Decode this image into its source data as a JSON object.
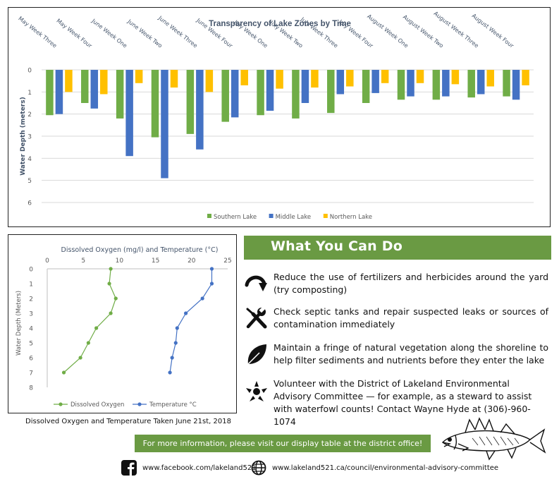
{
  "chart_data": [
    {
      "type": "bar",
      "title": "Transparency of Lake Zones by Time",
      "ylabel": "Water Depth (meters)",
      "yticks": [
        "0",
        "1",
        "2",
        "3",
        "4",
        "5",
        "6"
      ],
      "ylim": [
        0,
        6
      ],
      "inverted_y": true,
      "categories": [
        "May Week Three",
        "May Week Four",
        "June Week One",
        "June Week Two",
        "June Week Three",
        "June Week Four",
        "July Week One",
        "July Week Two",
        "July Week Three",
        "July Week Four",
        "August Week One",
        "August Week Two",
        "August Week Three",
        "August Week Four"
      ],
      "series": [
        {
          "name": "Southern Lake",
          "color": "#70ad47",
          "values": [
            2.05,
            1.5,
            2.2,
            3.05,
            2.9,
            2.35,
            2.05,
            2.2,
            1.95,
            1.5,
            1.35,
            1.35,
            1.25,
            1.2
          ]
        },
        {
          "name": "Middle Lake",
          "color": "#4472c4",
          "values": [
            2.0,
            1.75,
            3.9,
            4.9,
            3.6,
            2.15,
            1.85,
            1.5,
            1.1,
            1.05,
            1.2,
            1.2,
            1.1,
            1.35
          ]
        },
        {
          "name": "Northern Lake",
          "color": "#ffc000",
          "values": [
            1.0,
            1.1,
            0.6,
            0.8,
            1.0,
            0.7,
            0.85,
            0.8,
            0.75,
            0.6,
            0.6,
            0.65,
            0.75,
            0.7
          ]
        }
      ],
      "legend": "bottom"
    },
    {
      "type": "line",
      "title": "Dissolved Oxygen (mg/l) and Temperature (°C)",
      "ylabel": "Water Depth (Meters)",
      "xticks": [
        "0",
        "5",
        "10",
        "15",
        "20",
        "25"
      ],
      "yticks": [
        "0",
        "1",
        "2",
        "3",
        "4",
        "5",
        "6",
        "7",
        "8"
      ],
      "xlim": [
        0,
        25
      ],
      "ylim": [
        0,
        8
      ],
      "inverted_y": true,
      "series": [
        {
          "name": "Dissolved Oxygen",
          "color": "#70ad47",
          "points": [
            [
              8.8,
              0
            ],
            [
              8.6,
              1
            ],
            [
              9.5,
              2
            ],
            [
              8.8,
              3
            ],
            [
              6.8,
              4
            ],
            [
              5.7,
              5
            ],
            [
              4.6,
              6
            ],
            [
              2.3,
              7
            ]
          ]
        },
        {
          "name": "Temperature °C",
          "color": "#4472c4",
          "points": [
            [
              22.8,
              0
            ],
            [
              22.8,
              1
            ],
            [
              21.5,
              2
            ],
            [
              19.2,
              3
            ],
            [
              18.0,
              4
            ],
            [
              17.8,
              5
            ],
            [
              17.3,
              6
            ],
            [
              17.0,
              7
            ]
          ]
        }
      ],
      "legend": "bottom"
    }
  ],
  "caption": "Dissolved Oxygen and Temperature Taken June 21st, 2018",
  "what_you_can_do": {
    "title": "What You Can Do",
    "tips": [
      {
        "icon": "curved-arrow-icon",
        "text": "Reduce the use of fertilizers and herbicides around the yard (try composting)"
      },
      {
        "icon": "wrench-screwdriver-icon",
        "text": "Check septic tanks and repair suspected leaks or sources of contamination immediately"
      },
      {
        "icon": "leaf-icon",
        "text": "Maintain a fringe of natural vegetation along the shoreline to help filter sediments and nutrients before they enter the lake"
      },
      {
        "icon": "volunteer-hands-icon",
        "text": "Volunteer with the District of Lakeland Environmental Advisory Committee — for example, as a steward to assist with waterfowl counts! Contact Wayne Hyde at (306)-960-1074"
      }
    ]
  },
  "info_bar": "For more information, please visit our display table at the district office!",
  "facebook": {
    "icon": "facebook-icon",
    "text": "www.facebook.com/lakeland521"
  },
  "website": {
    "icon": "globe-icon",
    "text": "www.lakeland521.ca/council/environmental-advisory-committee"
  },
  "fish_icon": "walleye-fish-icon"
}
